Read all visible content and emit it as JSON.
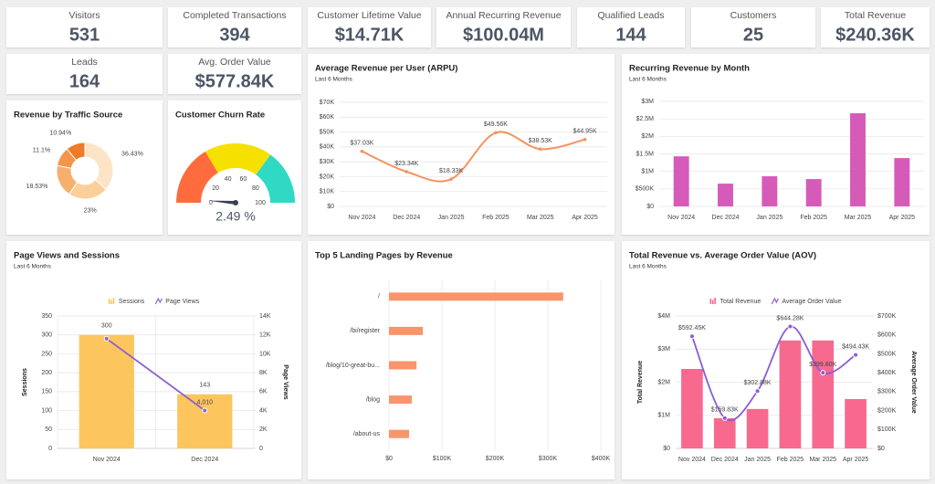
{
  "kpis": [
    {
      "label": "Visitors",
      "value": "531"
    },
    {
      "label": "Completed Transactions",
      "value": "394"
    },
    {
      "label": "Customer Lifetime Value",
      "value": "$14.71K"
    },
    {
      "label": "Annual Recurring Revenue",
      "value": "$100.04M"
    },
    {
      "label": "Qualified Leads",
      "value": "144"
    },
    {
      "label": "Customers",
      "value": "25"
    },
    {
      "label": "Total Revenue",
      "value": "$240.36K"
    },
    {
      "label": "Leads",
      "value": "164"
    },
    {
      "label": "Avg. Order Value",
      "value": "$577.84K"
    }
  ],
  "chart_data": [
    {
      "type": "pie",
      "title": "Revenue by Traffic Source",
      "values": [
        36.43,
        23,
        18.53,
        11.1,
        10.94
      ],
      "value_labels": [
        "36.43%",
        "23%",
        "18.53%",
        "11.1%",
        "10.94%"
      ],
      "colors": [
        "#fde4c6",
        "#fbcf9a",
        "#f7b06c",
        "#f4954a",
        "#ef7a28"
      ]
    },
    {
      "type": "gauge",
      "title": "Customer Churn Rate",
      "value": 2.49,
      "value_label": "2.49 %",
      "ylim": [
        0,
        100
      ],
      "yticks": [
        0,
        20,
        40,
        60,
        80,
        100
      ],
      "bands": [
        {
          "from": 0,
          "to": 33,
          "color": "#ff6b3d"
        },
        {
          "from": 33,
          "to": 70,
          "color": "#f6e000"
        },
        {
          "from": 70,
          "to": 100,
          "color": "#2fd9c4"
        }
      ]
    },
    {
      "type": "line",
      "title": "Average Revenue per User (ARPU)",
      "subtitle": "Last 6 Months",
      "categories": [
        "Nov 2024",
        "Dec 2024",
        "Jan 2025",
        "Feb 2025",
        "Mar 2025",
        "Apr 2025"
      ],
      "values": [
        37030,
        23340,
        18330,
        49560,
        38530,
        44950
      ],
      "value_labels": [
        "$37.03K",
        "$23.34K",
        "$18.33K",
        "$49.56K",
        "$38.53K",
        "$44.95K"
      ],
      "color": "#f5935c",
      "grid": true,
      "ylim": [
        0,
        70000
      ],
      "yticks": [
        {
          "value": 0,
          "label": "$0"
        },
        {
          "value": 10000,
          "label": "$10K"
        },
        {
          "value": 20000,
          "label": "$20K"
        },
        {
          "value": 30000,
          "label": "$30K"
        },
        {
          "value": 40000,
          "label": "$40K"
        },
        {
          "value": 50000,
          "label": "$50K"
        },
        {
          "value": 60000,
          "label": "$60K"
        },
        {
          "value": 70000,
          "label": "$70K"
        }
      ]
    },
    {
      "type": "bar",
      "title": "Recurring Revenue by Month",
      "subtitle": "Last 6 Months",
      "categories": [
        "Nov 2024",
        "Dec 2024",
        "Jan 2025",
        "Feb 2025",
        "Mar 2025",
        "Apr 2025"
      ],
      "values": [
        1430000,
        650000,
        860000,
        780000,
        2660000,
        1380000
      ],
      "color": "#d65bb9",
      "grid": true,
      "ylim": [
        0,
        3000000
      ],
      "yticks": [
        {
          "value": 0,
          "label": "$0"
        },
        {
          "value": 500000,
          "label": "$500K"
        },
        {
          "value": 1000000,
          "label": "$1M"
        },
        {
          "value": 1500000,
          "label": "$1.5M"
        },
        {
          "value": 2000000,
          "label": "$2M"
        },
        {
          "value": 2500000,
          "label": "$2.5M"
        },
        {
          "value": 3000000,
          "label": "$3M"
        }
      ]
    },
    {
      "type": "combo",
      "title": "Page Views and Sessions",
      "subtitle": "Last 6 Months",
      "categories": [
        "Nov 2024",
        "Dec 2024"
      ],
      "ylabel": "Sessions",
      "y2label": "Page Views",
      "grid": true,
      "ylim": [
        0,
        350
      ],
      "yticks": [
        0,
        50,
        100,
        150,
        200,
        250,
        300,
        350
      ],
      "y2lim": [
        0,
        14000
      ],
      "y2ticks": [
        0,
        {
          "value": 2000,
          "label": "2K"
        },
        {
          "value": 4000,
          "label": "4K"
        },
        {
          "value": 6000,
          "label": "6K"
        },
        {
          "value": 8000,
          "label": "8K"
        },
        {
          "value": 10000,
          "label": "10K"
        },
        {
          "value": 12000,
          "label": "12K"
        },
        {
          "value": 14000,
          "label": "14K"
        }
      ],
      "series": [
        {
          "name": "Sessions",
          "type": "bar",
          "color": "#fdc55e",
          "values": [
            300,
            143
          ],
          "data_labels": true
        },
        {
          "name": "Page Views",
          "type": "line",
          "axis": "y2",
          "color": "#8a63cf",
          "values": [
            11600,
            4010
          ],
          "value_labels": [
            null,
            "4,010"
          ]
        }
      ]
    },
    {
      "type": "hbar",
      "title": "Top 5 Landing Pages by Revenue",
      "categories": [
        "/",
        "/bi/register",
        "/blog/10-great-bu...",
        "/blog",
        "/about-us"
      ],
      "values": [
        329000,
        64000,
        52000,
        43000,
        38000
      ],
      "color": "#f9956b",
      "grid": true,
      "xlim": [
        0,
        400000
      ],
      "xticks": [
        {
          "value": 0,
          "label": "$0"
        },
        {
          "value": 100000,
          "label": "$100K"
        },
        {
          "value": 200000,
          "label": "$200K"
        },
        {
          "value": 300000,
          "label": "$300K"
        },
        {
          "value": 400000,
          "label": "$400K"
        }
      ]
    },
    {
      "type": "combo",
      "title": "Total Revenue vs. Average Order Value (AOV)",
      "subtitle": "Last 6 Months",
      "categories": [
        "Nov 2024",
        "Dec 2024",
        "Jan 2025",
        "Feb 2025",
        "Mar 2025",
        "Apr 2025"
      ],
      "ylabel": "Total Revenue",
      "y2label": "Average Order Value",
      "grid": true,
      "ylim": [
        0,
        4000000
      ],
      "yticks": [
        {
          "value": 0,
          "label": "$0"
        },
        {
          "value": 1000000,
          "label": "$1M"
        },
        {
          "value": 2000000,
          "label": "$2M"
        },
        {
          "value": 3000000,
          "label": "$3M"
        },
        {
          "value": 4000000,
          "label": "$4M"
        }
      ],
      "y2lim": [
        0,
        700000
      ],
      "y2ticks": [
        {
          "value": 0,
          "label": "$0"
        },
        {
          "value": 100000,
          "label": "$100K"
        },
        {
          "value": 200000,
          "label": "$200K"
        },
        {
          "value": 300000,
          "label": "$300K"
        },
        {
          "value": 400000,
          "label": "$400K"
        },
        {
          "value": 500000,
          "label": "$500K"
        },
        {
          "value": 600000,
          "label": "$600K"
        },
        {
          "value": 700000,
          "label": "$700K"
        }
      ],
      "series": [
        {
          "name": "Total Revenue",
          "type": "bar",
          "color": "#f7698f",
          "values": [
            2400000,
            910000,
            1190000,
            3260000,
            3260000,
            1490000
          ]
        },
        {
          "name": "Average Order Value",
          "type": "line",
          "axis": "y2",
          "color": "#8e5bd0",
          "values": [
            592450,
            159830,
            302880,
            644280,
            399800,
            494430
          ],
          "value_labels": [
            "$592.45K",
            "$159.83K",
            "$302.88K",
            "$644.28K",
            "$399.80K",
            "$494.43K"
          ]
        }
      ]
    }
  ]
}
